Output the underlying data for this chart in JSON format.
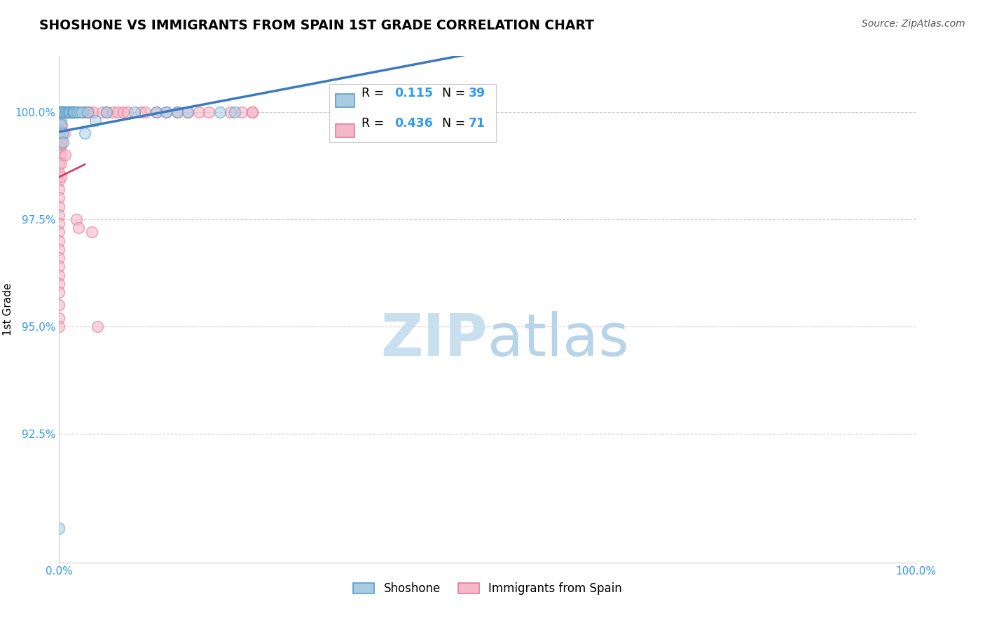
{
  "title": "SHOSHONE VS IMMIGRANTS FROM SPAIN 1ST GRADE CORRELATION CHART",
  "source": "Source: ZipAtlas.com",
  "ylabel": "1st Grade",
  "xlim": [
    0.0,
    1.0
  ],
  "ylim": [
    89.5,
    101.3
  ],
  "blue_color": "#a8cce4",
  "pink_color": "#f4b8c8",
  "blue_edge_color": "#5b9ec9",
  "pink_edge_color": "#e87a9a",
  "blue_line_color": "#3a7bbf",
  "pink_line_color": "#d44060",
  "watermark_color": "#c8dff0",
  "yticks": [
    92.5,
    95.0,
    97.5,
    100.0
  ],
  "legend_R_blue": "0.115",
  "legend_N_blue": "39",
  "legend_R_pink": "0.436",
  "legend_N_pink": "71",
  "shoshone_points": [
    [
      0.0,
      90.3
    ],
    [
      0.0,
      99.5
    ],
    [
      0.0,
      100.0
    ],
    [
      0.001,
      100.0
    ],
    [
      0.001,
      99.8
    ],
    [
      0.002,
      100.0
    ],
    [
      0.002,
      99.7
    ],
    [
      0.003,
      100.0
    ],
    [
      0.003,
      100.0
    ],
    [
      0.004,
      99.5
    ],
    [
      0.004,
      100.0
    ],
    [
      0.005,
      100.0
    ],
    [
      0.005,
      99.3
    ],
    [
      0.007,
      100.0
    ],
    [
      0.008,
      100.0
    ],
    [
      0.009,
      100.0
    ],
    [
      0.01,
      100.0
    ],
    [
      0.011,
      100.0
    ],
    [
      0.012,
      100.0
    ],
    [
      0.013,
      100.0
    ],
    [
      0.015,
      100.0
    ],
    [
      0.016,
      100.0
    ],
    [
      0.017,
      100.0
    ],
    [
      0.018,
      100.0
    ],
    [
      0.02,
      100.0
    ],
    [
      0.022,
      100.0
    ],
    [
      0.024,
      100.0
    ],
    [
      0.027,
      100.0
    ],
    [
      0.03,
      99.5
    ],
    [
      0.033,
      100.0
    ],
    [
      0.042,
      99.8
    ],
    [
      0.055,
      100.0
    ],
    [
      0.088,
      100.0
    ],
    [
      0.113,
      100.0
    ],
    [
      0.125,
      100.0
    ],
    [
      0.138,
      100.0
    ],
    [
      0.15,
      100.0
    ],
    [
      0.188,
      100.0
    ],
    [
      0.205,
      100.0
    ]
  ],
  "spain_points": [
    [
      0.0,
      100.0
    ],
    [
      0.0,
      99.8
    ],
    [
      0.0,
      99.6
    ],
    [
      0.0,
      99.4
    ],
    [
      0.0,
      99.2
    ],
    [
      0.0,
      99.0
    ],
    [
      0.0,
      98.8
    ],
    [
      0.0,
      98.6
    ],
    [
      0.0,
      98.4
    ],
    [
      0.0,
      98.2
    ],
    [
      0.0,
      98.0
    ],
    [
      0.0,
      97.8
    ],
    [
      0.0,
      97.6
    ],
    [
      0.0,
      97.4
    ],
    [
      0.0,
      97.2
    ],
    [
      0.0,
      97.0
    ],
    [
      0.0,
      96.8
    ],
    [
      0.0,
      96.6
    ],
    [
      0.0,
      96.4
    ],
    [
      0.0,
      96.2
    ],
    [
      0.0,
      96.0
    ],
    [
      0.0,
      95.8
    ],
    [
      0.0,
      95.5
    ],
    [
      0.0,
      95.2
    ],
    [
      0.0,
      95.0
    ],
    [
      0.001,
      100.0
    ],
    [
      0.001,
      99.5
    ],
    [
      0.001,
      99.2
    ],
    [
      0.002,
      99.0
    ],
    [
      0.002,
      100.0
    ],
    [
      0.002,
      98.8
    ],
    [
      0.002,
      98.5
    ],
    [
      0.003,
      100.0
    ],
    [
      0.003,
      99.7
    ],
    [
      0.003,
      100.0
    ],
    [
      0.003,
      99.3
    ],
    [
      0.004,
      100.0
    ],
    [
      0.005,
      100.0
    ],
    [
      0.006,
      99.5
    ],
    [
      0.007,
      99.0
    ],
    [
      0.01,
      100.0
    ],
    [
      0.013,
      100.0
    ],
    [
      0.015,
      100.0
    ],
    [
      0.018,
      100.0
    ],
    [
      0.02,
      97.5
    ],
    [
      0.023,
      97.3
    ],
    [
      0.028,
      100.0
    ],
    [
      0.03,
      100.0
    ],
    [
      0.033,
      100.0
    ],
    [
      0.035,
      100.0
    ],
    [
      0.038,
      97.2
    ],
    [
      0.04,
      100.0
    ],
    [
      0.045,
      95.0
    ],
    [
      0.05,
      100.0
    ],
    [
      0.055,
      100.0
    ],
    [
      0.063,
      100.0
    ],
    [
      0.068,
      100.0
    ],
    [
      0.075,
      100.0
    ],
    [
      0.08,
      100.0
    ],
    [
      0.095,
      100.0
    ],
    [
      0.1,
      100.0
    ],
    [
      0.113,
      100.0
    ],
    [
      0.125,
      100.0
    ],
    [
      0.138,
      100.0
    ],
    [
      0.15,
      100.0
    ],
    [
      0.163,
      100.0
    ],
    [
      0.175,
      100.0
    ],
    [
      0.2,
      100.0
    ],
    [
      0.213,
      100.0
    ],
    [
      0.225,
      100.0
    ],
    [
      0.225,
      100.0
    ]
  ]
}
